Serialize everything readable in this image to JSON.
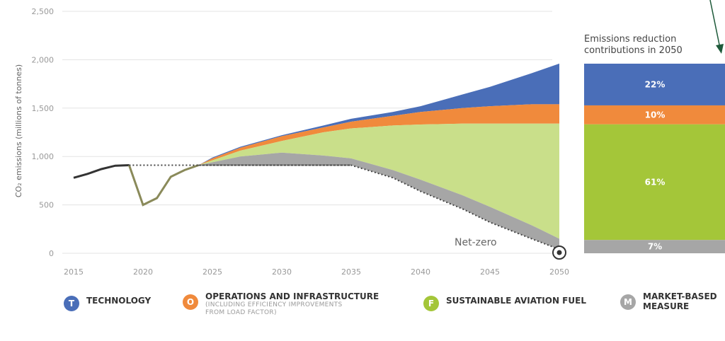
{
  "chart_data": {
    "type": "area",
    "ylabel": "CO₂ emissions (millions of tonnes)",
    "x": [
      2015,
      2020,
      2025,
      2030,
      2035,
      2040,
      2045,
      2050
    ],
    "x_ticks": [
      "2015",
      "2020",
      "2025",
      "2030",
      "2035",
      "2040",
      "2045",
      "2050"
    ],
    "ylim": [
      0,
      2500
    ],
    "y_ticks": [
      0,
      500,
      1000,
      1500,
      2000,
      2500
    ],
    "y_tick_labels": [
      "0",
      "500",
      "1,000",
      "1,500",
      "2,000",
      "2,500"
    ],
    "grid": true,
    "historical": {
      "x": [
        2015,
        2016,
        2017,
        2018,
        2019,
        2020,
        2021,
        2022,
        2023,
        2024
      ],
      "y": [
        780,
        820,
        870,
        905,
        910,
        500,
        570,
        790,
        860,
        910
      ]
    },
    "baseline_dotted": {
      "x": [
        2019,
        2035
      ],
      "y": [
        910,
        910
      ]
    },
    "bands": {
      "x": [
        2024,
        2025,
        2027,
        2030,
        2033,
        2035,
        2038,
        2040,
        2043,
        2045,
        2048,
        2050
      ],
      "technology_top": [
        910,
        990,
        1100,
        1220,
        1320,
        1390,
        1460,
        1520,
        1640,
        1720,
        1860,
        1960
      ],
      "operations_top": [
        910,
        980,
        1090,
        1210,
        1300,
        1360,
        1420,
        1460,
        1500,
        1520,
        1540,
        1540
      ],
      "saf_top": [
        910,
        960,
        1060,
        1160,
        1250,
        1290,
        1320,
        1330,
        1340,
        1340,
        1340,
        1340
      ],
      "market_top": [
        910,
        940,
        1000,
        1040,
        1010,
        980,
        860,
        760,
        600,
        480,
        290,
        150
      ],
      "net_line": [
        910,
        910,
        910,
        910,
        910,
        910,
        780,
        640,
        460,
        320,
        150,
        40
      ]
    },
    "net_zero_label": "Net-zero",
    "stack": {
      "title_lines": [
        "Emissions reduction",
        "contributions in 2050"
      ],
      "segments": [
        {
          "name": "TECHNOLOGY",
          "pct": 22,
          "label": "22%",
          "color": "#4a6eb8"
        },
        {
          "name": "OPERATIONS AND INFRASTRUCTURE",
          "pct": 10,
          "label": "10%",
          "color": "#f08a3c"
        },
        {
          "name": "SUSTAINABLE AVIATION FUEL",
          "pct": 61,
          "label": "61%",
          "color": "#a4c639"
        },
        {
          "name": "MARKET-BASED MEASURE",
          "pct": 7,
          "label": "7%",
          "color": "#a6a6a6"
        }
      ]
    },
    "colors": {
      "technology": "#4a6eb8",
      "operations": "#f08a3c",
      "saf_fill": "#c9df8a",
      "saf": "#a4c639",
      "market": "#a6a6a6",
      "historical_line": "#333333",
      "covid_dip_line": "#8a8a5a",
      "arrow": "#1e5a3a"
    }
  },
  "legend": {
    "items": [
      {
        "badge": "T",
        "label": "TECHNOLOGY",
        "sub": [],
        "color": "#4a6eb8"
      },
      {
        "badge": "O",
        "label": "OPERATIONS AND INFRASTRUCTURE",
        "sub": [
          "(INCLUDING EFFICIENCY IMPROVEMENTS",
          "FROM LOAD FACTOR)"
        ],
        "color": "#f08a3c"
      },
      {
        "badge": "F",
        "label": "SUSTAINABLE AVIATION FUEL",
        "sub": [],
        "color": "#a4c639"
      },
      {
        "badge": "M",
        "label": "MARKET-BASED\nMEASURE",
        "sub": [],
        "color": "#a6a6a6"
      }
    ]
  }
}
